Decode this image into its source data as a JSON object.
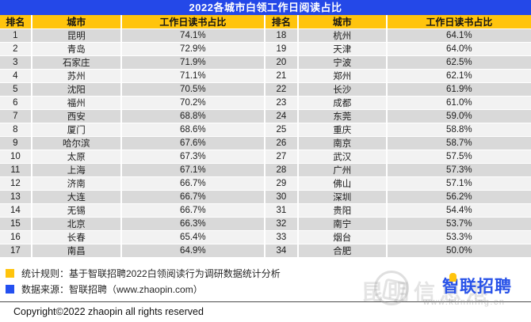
{
  "title": "2022各城市白领工作日阅读占比",
  "table": {
    "headers": [
      "排名",
      "城市",
      "工作日读书占比"
    ],
    "split_at": 17
  },
  "chart_data": {
    "type": "table",
    "title": "2022各城市白领工作日阅读占比",
    "columns": [
      "排名",
      "城市",
      "工作日读书占比"
    ],
    "rows": [
      [
        1,
        "昆明",
        "74.1%"
      ],
      [
        2,
        "青岛",
        "72.9%"
      ],
      [
        3,
        "石家庄",
        "71.9%"
      ],
      [
        4,
        "苏州",
        "71.1%"
      ],
      [
        5,
        "沈阳",
        "70.5%"
      ],
      [
        6,
        "福州",
        "70.2%"
      ],
      [
        7,
        "西安",
        "68.8%"
      ],
      [
        8,
        "厦门",
        "68.6%"
      ],
      [
        9,
        "哈尔滨",
        "67.6%"
      ],
      [
        10,
        "太原",
        "67.3%"
      ],
      [
        11,
        "上海",
        "67.1%"
      ],
      [
        12,
        "济南",
        "66.7%"
      ],
      [
        13,
        "大连",
        "66.7%"
      ],
      [
        14,
        "无锡",
        "66.7%"
      ],
      [
        15,
        "北京",
        "66.3%"
      ],
      [
        16,
        "长春",
        "65.4%"
      ],
      [
        17,
        "南昌",
        "64.9%"
      ],
      [
        18,
        "杭州",
        "64.1%"
      ],
      [
        19,
        "天津",
        "64.0%"
      ],
      [
        20,
        "宁波",
        "62.5%"
      ],
      [
        21,
        "郑州",
        "62.1%"
      ],
      [
        22,
        "长沙",
        "61.9%"
      ],
      [
        23,
        "成都",
        "61.0%"
      ],
      [
        24,
        "东莞",
        "59.0%"
      ],
      [
        25,
        "重庆",
        "58.8%"
      ],
      [
        26,
        "南京",
        "58.7%"
      ],
      [
        27,
        "武汉",
        "57.5%"
      ],
      [
        28,
        "广州",
        "57.3%"
      ],
      [
        29,
        "佛山",
        "57.1%"
      ],
      [
        30,
        "深圳",
        "56.2%"
      ],
      [
        31,
        "贵阳",
        "54.4%"
      ],
      [
        32,
        "南宁",
        "53.7%"
      ],
      [
        33,
        "烟台",
        "53.3%"
      ],
      [
        34,
        "合肥",
        "50.0%"
      ]
    ]
  },
  "legend": [
    {
      "swatch_color": "#FFC40D",
      "text": "统计规则：基于智联招聘2022白领阅读行为调研数据统计分析"
    },
    {
      "swatch_color": "#2450F0",
      "text": "数据来源：智联招聘（www.zhaopin.com）"
    }
  ],
  "copyright": "Copyright©2022 zhaopin all rights reserved",
  "watermark": {
    "ghost_text": "昆明信息港",
    "wordmark": "智联招聘",
    "url": "www.kunming.cn"
  },
  "colors": {
    "title_bar": "#2448E8",
    "header_bg": "#FFC40D",
    "row_odd": "#D9D9D9",
    "row_even": "#F2F2F2",
    "legend_blue": "#2450F0",
    "watermark_blue": "#2852E8"
  }
}
